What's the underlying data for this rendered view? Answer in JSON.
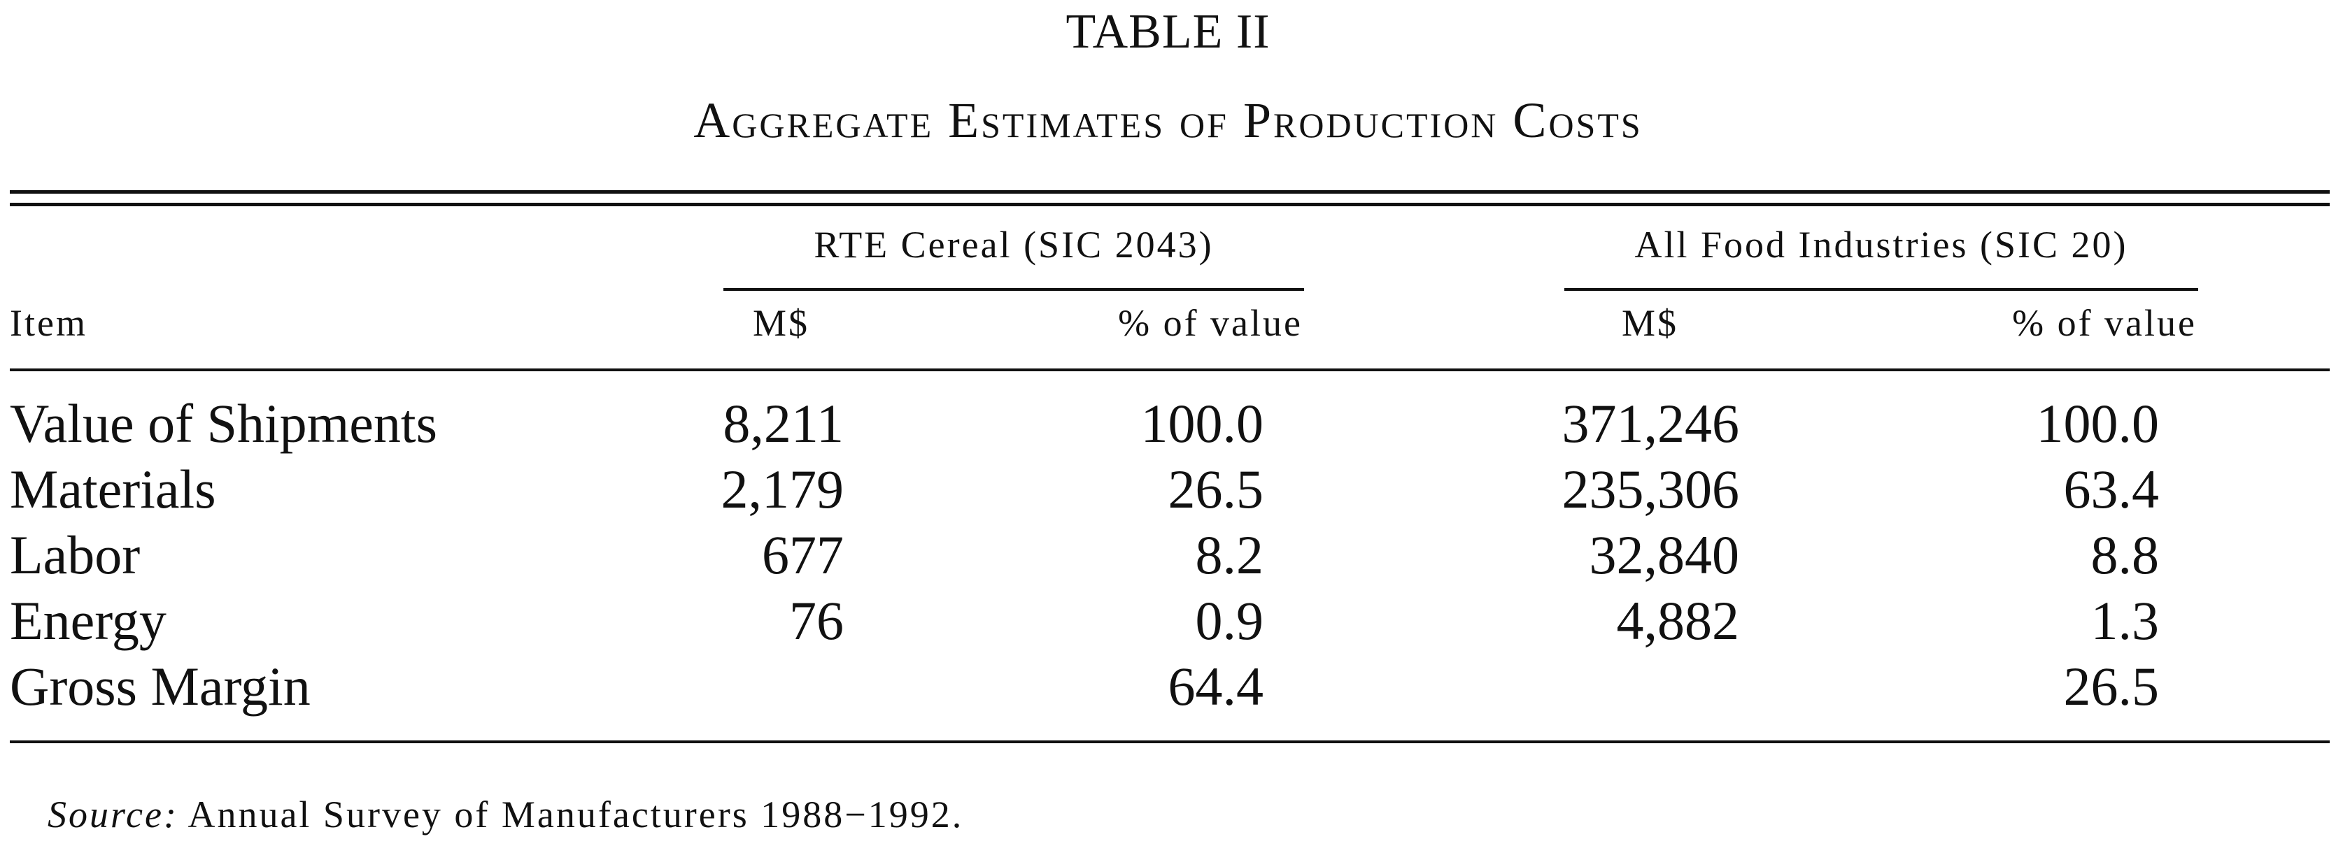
{
  "table": {
    "title": "TABLE II",
    "subtitle": "Aggregate Estimates of Production Costs",
    "group_headers": {
      "rte": "RTE Cereal (SIC 2043)",
      "food": "All Food Industries (SIC 20)"
    },
    "column_headers": {
      "item": "Item",
      "rte_m": "M$",
      "rte_pct": "% of value",
      "food_m": "M$",
      "food_pct": "% of value"
    },
    "rows": [
      {
        "item": "Value of Shipments",
        "rte_m": "8,211",
        "rte_pct": "100.0",
        "food_m": "371,246",
        "food_pct": "100.0"
      },
      {
        "item": "Materials",
        "rte_m": "2,179",
        "rte_pct": "26.5",
        "food_m": "235,306",
        "food_pct": "63.4"
      },
      {
        "item": "Labor",
        "rte_m": "677",
        "rte_pct": "8.2",
        "food_m": "32,840",
        "food_pct": "8.8"
      },
      {
        "item": "Energy",
        "rte_m": "76",
        "rte_pct": "0.9",
        "food_m": "4,882",
        "food_pct": "1.3"
      },
      {
        "item": "Gross Margin",
        "rte_m": "",
        "rte_pct": "64.4",
        "food_m": "",
        "food_pct": "26.5"
      }
    ],
    "source": {
      "label": "Source:",
      "text": "Annual Survey of Manufacturers 1988−1992."
    }
  }
}
